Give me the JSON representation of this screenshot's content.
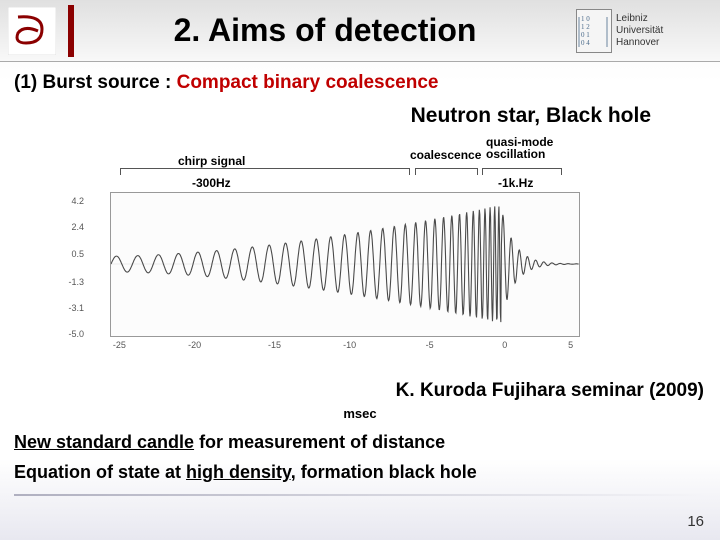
{
  "header": {
    "title": "2. Aims of detection",
    "right_logo": {
      "line1": "Leibniz",
      "line2": "Universität",
      "line3": "Hannover",
      "digits": "1 0\n1 2\n0 1\n0 4"
    }
  },
  "subtitle_prefix": "(1) Burst source : ",
  "subtitle_red": "Compact binary coalescence",
  "subheading": "Neutron star, Black hole",
  "chart": {
    "labels": {
      "chirp": "chirp signal",
      "coalescence": "coalescence",
      "quasi1": "quasi-mode",
      "quasi2": "oscillation",
      "freq_low": "-300Hz",
      "freq_high": "-1k.Hz"
    },
    "y_ticks": [
      "4.2",
      "2.4",
      "0.5",
      "-1.3",
      "-3.1",
      "-5.0"
    ],
    "x_ticks": [
      "-25",
      "-20",
      "-15",
      "-10",
      "-5",
      "0",
      "5"
    ],
    "xlim": [
      -25,
      5
    ],
    "ylim": [
      -5.0,
      4.2
    ],
    "line_color": "#4a4a4a",
    "background": "#fcfcfc",
    "axis_label": "msec"
  },
  "citation": "K. Kuroda Fujihara seminar (2009)",
  "body1_a": "New standard candle",
  "body1_b": " for measurement of distance",
  "body2_a": "Equation of state at ",
  "body2_b": "high density",
  "body2_c": ", formation black hole",
  "page_number": "16"
}
